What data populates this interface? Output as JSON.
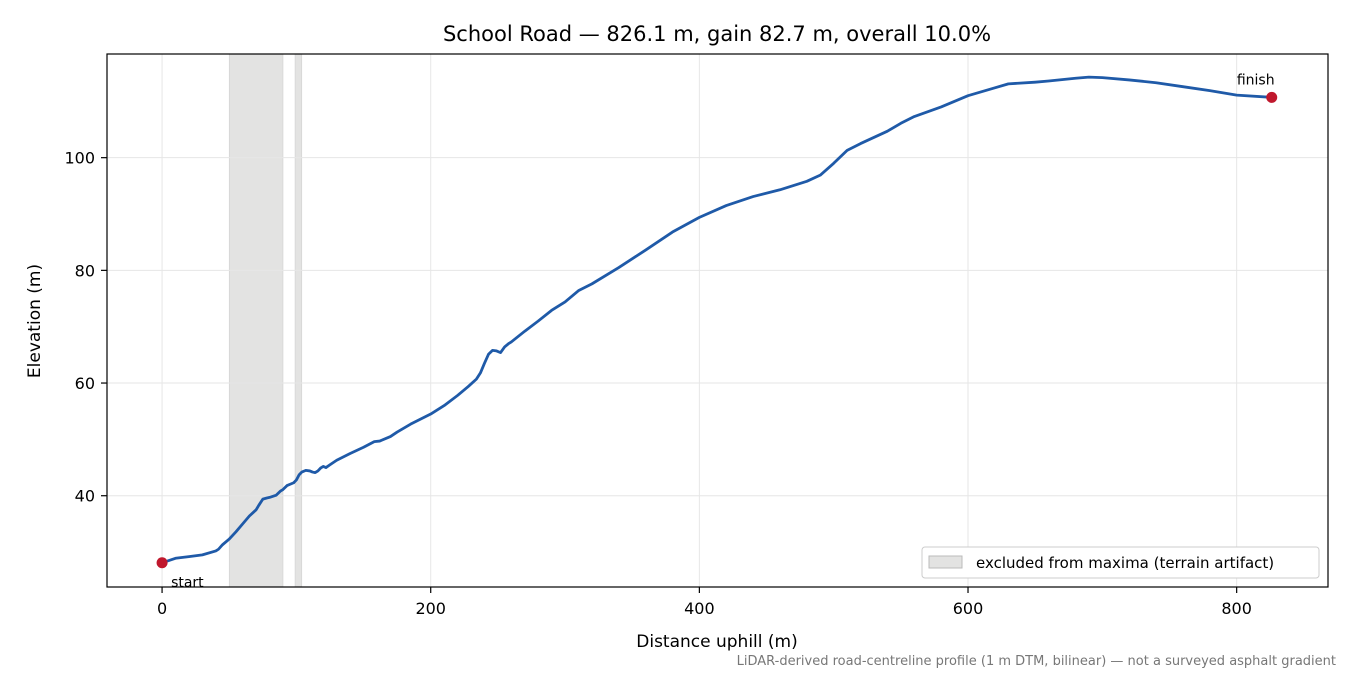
{
  "chart_data": {
    "type": "line",
    "title": "School Road — 826.1 m, gain 82.7 m, overall 10.0%",
    "xlabel": "Distance uphill (m)",
    "ylabel": "Elevation (m)",
    "xlim": [
      -41,
      868
    ],
    "ylim": [
      23.8,
      118.4
    ],
    "xticks": [
      0,
      200,
      400,
      600,
      800
    ],
    "yticks": [
      40,
      60,
      80,
      100
    ],
    "grid": true,
    "legend_position": "bottom-right",
    "legend_label": "excluded from maxima (terrain artifact)",
    "footnote": "LiDAR-derived road-centreline profile (1 m DTM, bilinear) — not a surveyed asphalt gradient",
    "excluded_ranges": [
      [
        50,
        90
      ],
      [
        99,
        104
      ]
    ],
    "series": [
      {
        "color": "#1f5aa8",
        "x": [
          0,
          10,
          20,
          30,
          40,
          42,
          45,
          50,
          55,
          60,
          65,
          70,
          72,
          75,
          78,
          80,
          85,
          88,
          90,
          93,
          96,
          98,
          100,
          102,
          104,
          107,
          110,
          112,
          114,
          116,
          118,
          120,
          122,
          125,
          130,
          140,
          150,
          158,
          162,
          170,
          175,
          185,
          200,
          210,
          220,
          228,
          234,
          237,
          240,
          243,
          246,
          249,
          252,
          255,
          258,
          260,
          270,
          280,
          290,
          300,
          310,
          320,
          340,
          360,
          380,
          400,
          420,
          440,
          460,
          480,
          490,
          500,
          510,
          520,
          540,
          550,
          560,
          580,
          600,
          620,
          630,
          650,
          660,
          680,
          690,
          700,
          720,
          740,
          760,
          780,
          800,
          826.1
        ],
        "y": [
          28.1,
          28.9,
          29.2,
          29.5,
          30.2,
          30.5,
          31.3,
          32.3,
          33.6,
          35.0,
          36.4,
          37.5,
          38.3,
          39.4,
          39.6,
          39.7,
          40.1,
          40.8,
          41.1,
          41.8,
          42.1,
          42.3,
          42.8,
          43.7,
          44.2,
          44.5,
          44.4,
          44.2,
          44.1,
          44.4,
          44.9,
          45.2,
          45.0,
          45.5,
          46.3,
          47.5,
          48.6,
          49.6,
          49.7,
          50.5,
          51.3,
          52.7,
          54.5,
          56.0,
          57.8,
          59.4,
          60.7,
          61.8,
          63.5,
          65.1,
          65.8,
          65.7,
          65.4,
          66.4,
          67.0,
          67.3,
          69.2,
          71.0,
          72.9,
          74.4,
          76.4,
          77.6,
          80.5,
          83.6,
          86.8,
          89.4,
          91.5,
          93.1,
          94.3,
          95.8,
          96.9,
          99.0,
          101.3,
          102.5,
          104.7,
          106.1,
          107.3,
          109.0,
          111.0,
          112.4,
          113.1,
          113.4,
          113.6,
          114.1,
          114.3,
          114.2,
          113.8,
          113.3,
          112.6,
          111.9,
          111.1,
          110.7
        ]
      }
    ],
    "annotations": [
      {
        "text": "start",
        "x": 0,
        "y": 28.1
      },
      {
        "text": "finish",
        "x": 826.1,
        "y": 110.7
      }
    ],
    "marker_color": "#c0182d",
    "excluded_color": "#e3e3e2"
  }
}
